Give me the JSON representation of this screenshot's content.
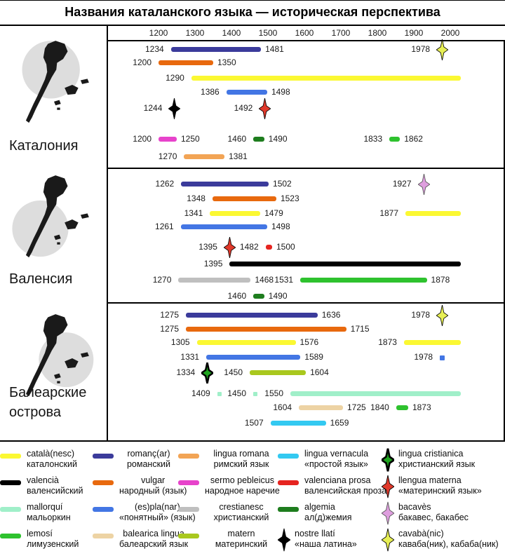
{
  "chart_data": {
    "type": "bar",
    "variant": "timeline-gantt",
    "title": "Названия каталанского языка — историческая перспектива",
    "x_axis": {
      "unit": "year",
      "ticks": [
        1200,
        1300,
        1400,
        1500,
        1600,
        1700,
        1800,
        1900,
        2000
      ]
    },
    "open_ended_meaning": "bars without end year continue to the right edge (still in use)",
    "sections": [
      {
        "region": "Каталония",
        "rows": [
          [
            {
              "t": "bar",
              "key": "romanc",
              "start": 1234,
              "end": 1481
            },
            {
              "t": "star",
              "key": "cavaba",
              "year": 1978
            }
          ],
          [
            {
              "t": "bar",
              "key": "vulgar",
              "start": 1200,
              "end": 1350
            }
          ],
          [
            {
              "t": "bar",
              "key": "catala",
              "start": 1290
            }
          ],
          [
            {
              "t": "bar",
              "key": "esplanar",
              "start": 1386,
              "end": 1498
            }
          ],
          [
            {
              "t": "star",
              "key": "nostre_llati",
              "year": 1244
            },
            {
              "t": "star",
              "key": "materna",
              "year": 1492
            }
          ],
          [
            {
              "t": "bar",
              "key": "sermo",
              "start": 1200,
              "end": 1250
            },
            {
              "t": "bar",
              "key": "algemia",
              "start": 1460,
              "end": 1490
            },
            {
              "t": "bar",
              "key": "lemosi",
              "start": 1833,
              "end": 1862
            }
          ],
          [
            {
              "t": "bar",
              "key": "lingua_romana",
              "start": 1270,
              "end": 1381
            }
          ]
        ]
      },
      {
        "region": "Валенсия",
        "rows": [
          [
            {
              "t": "bar",
              "key": "romanc",
              "start": 1262,
              "end": 1502
            },
            {
              "t": "star",
              "key": "bacaves",
              "year": 1927
            }
          ],
          [
            {
              "t": "bar",
              "key": "vulgar",
              "start": 1348,
              "end": 1523
            }
          ],
          [
            {
              "t": "bar",
              "key": "catala",
              "start": 1341,
              "end": 1479
            },
            {
              "t": "bar",
              "key": "catala",
              "start": 1877
            }
          ],
          [
            {
              "t": "bar",
              "key": "esplanar",
              "start": 1261,
              "end": 1498
            }
          ],
          [
            {
              "t": "star",
              "key": "materna",
              "year": 1395
            },
            {
              "t": "bar",
              "key": "valenciana_prosa",
              "start": 1482,
              "end": 1500
            }
          ],
          [
            {
              "t": "bar",
              "key": "valencia",
              "start": 1395
            }
          ],
          [
            {
              "t": "bar",
              "key": "crestianesc",
              "start": 1270,
              "end": 1468
            },
            {
              "t": "bar",
              "key": "lemosi",
              "start": 1531,
              "end": 1878
            }
          ],
          [
            {
              "t": "bar",
              "key": "algemia",
              "start": 1460,
              "end": 1490
            }
          ]
        ]
      },
      {
        "region": "Балеарские острова",
        "rows": [
          [
            {
              "t": "bar",
              "key": "romanc",
              "start": 1275,
              "end": 1636
            },
            {
              "t": "star",
              "key": "cavaba",
              "year": 1978
            }
          ],
          [
            {
              "t": "bar",
              "key": "vulgar",
              "start": 1275,
              "end": 1715
            }
          ],
          [
            {
              "t": "bar",
              "key": "catala",
              "start": 1305,
              "end": 1576
            },
            {
              "t": "bar",
              "key": "catala",
              "start": 1873
            }
          ],
          [
            {
              "t": "bar",
              "key": "esplanar",
              "start": 1331,
              "end": 1589
            },
            {
              "t": "sq",
              "key": "esplanar",
              "year": 1978
            }
          ],
          [
            {
              "t": "star",
              "key": "cristianica",
              "year": 1334
            },
            {
              "t": "bar",
              "key": "matern",
              "start": 1450,
              "end": 1604
            }
          ],
          [
            {
              "t": "sq",
              "key": "mallorqui",
              "year": 1409
            },
            {
              "t": "sq",
              "key": "mallorqui",
              "year": 1450
            },
            {
              "t": "bar",
              "key": "mallorqui",
              "start": 1550
            }
          ],
          [
            {
              "t": "bar",
              "key": "balearica",
              "start": 1604,
              "end": 1725
            },
            {
              "t": "bar",
              "key": "lemosi",
              "start": 1840,
              "end": 1873
            }
          ],
          [
            {
              "t": "bar",
              "key": "vernacula",
              "start": 1507,
              "end": 1659
            }
          ]
        ]
      }
    ]
  },
  "colors": {
    "catala": "#FBF832",
    "valencia": "#000000",
    "mallorqui": "#A0EFC9",
    "lemosi": "#2EC22E",
    "romanc": "#3B3B9B",
    "vulgar": "#E8690E",
    "esplanar": "#4376E4",
    "balearica": "#EDD3A4",
    "lingua_romana": "#F2A455",
    "sermo": "#E743CB",
    "crestianesc": "#BFBFBF",
    "matern": "#A9C81E",
    "vernacula": "#33C9F1",
    "valenciana_prosa": "#E62420",
    "algemia": "#1E7D1E",
    "nostre_llati": "#000000",
    "cristianica": "#1FA51F",
    "materna": "#E0392B",
    "bacaves": "#DE9EDE",
    "cavaba": "#E7EF55",
    "map_circle": "#DDDDDD",
    "map_land": "#1A1A1A"
  },
  "legend": {
    "columns": [
      {
        "entries": [
          {
            "marker": "bar",
            "key": "catala",
            "latin": "català(nesc)",
            "russian": "каталонский"
          },
          {
            "marker": "bar",
            "key": "valencia",
            "latin": "valencià",
            "russian": "валенсийский"
          },
          {
            "marker": "bar",
            "key": "mallorqui",
            "latin": "mallorquí",
            "russian": "мальоркин"
          },
          {
            "marker": "bar",
            "key": "lemosi",
            "latin": "lemosí",
            "russian": "лимузенский"
          }
        ]
      },
      {
        "entries": [
          {
            "marker": "bar",
            "key": "romanc",
            "latin": "romanç(ar)",
            "russian": "романский"
          },
          {
            "marker": "bar",
            "key": "vulgar",
            "latin": "vulgar",
            "russian": "народный (язык)"
          },
          {
            "marker": "bar",
            "key": "esplanar",
            "latin": "(es)pla(nar)",
            "russian": "«понятный» (язык)"
          },
          {
            "marker": "bar",
            "key": "balearica",
            "latin": "balearica lingua",
            "russian": "балеарский язык"
          }
        ]
      },
      {
        "entries": [
          {
            "marker": "bar",
            "key": "lingua_romana",
            "latin": "lingua romana",
            "russian": "римский язык"
          },
          {
            "marker": "bar",
            "key": "sermo",
            "latin": "sermo pebleicus",
            "russian": "народное наречие"
          },
          {
            "marker": "bar",
            "key": "crestianesc",
            "latin": "crestianesc",
            "russian": "христианский"
          },
          {
            "marker": "bar",
            "key": "matern",
            "latin": "matern",
            "russian": "материнский"
          }
        ]
      },
      {
        "entries": [
          {
            "marker": "bar",
            "key": "vernacula",
            "latin": "lingua vernacula",
            "russian": "«простой язык»"
          },
          {
            "marker": "bar",
            "key": "valenciana_prosa",
            "latin": "valenciana prosa",
            "russian": "валенсийская проза"
          },
          {
            "marker": "bar",
            "key": "algemia",
            "latin": "algemia",
            "russian": "ал(д)жемия"
          },
          {
            "marker": "star",
            "key": "nostre_llati",
            "latin": "nostre llatí",
            "russian": "«наша латина»"
          }
        ]
      },
      {
        "entries": [
          {
            "marker": "star",
            "key": "cristianica",
            "latin": "lingua cristianica",
            "russian": "христианский язык"
          },
          {
            "marker": "star",
            "key": "materna",
            "latin": "llengua materna",
            "russian": "«материнский язык»"
          },
          {
            "marker": "star",
            "key": "bacaves",
            "latin": "bacavès",
            "russian": "бакавес, бакабес"
          },
          {
            "marker": "star",
            "key": "cavaba",
            "latin": "cavabà(nic)",
            "russian": "каваба(ник), кабаба(ник)"
          }
        ]
      }
    ]
  }
}
